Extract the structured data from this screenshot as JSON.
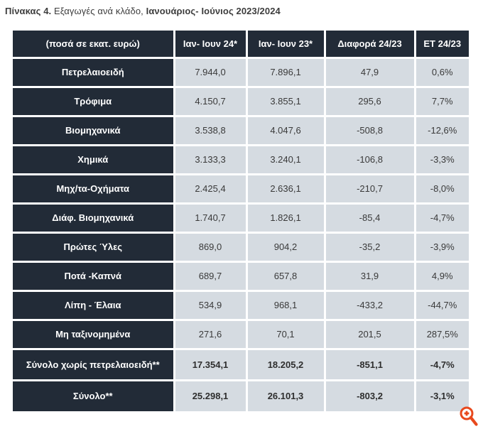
{
  "title": {
    "part_bold_1": "Πίνακας 4.",
    "part_regular": " Εξαγωγές ανά κλάδο, ",
    "part_bold_2": "Ιανουάριος- Ιούνιος 2023/2024"
  },
  "chart_data": {
    "type": "table",
    "title": "Πίνακας 4. Εξαγωγές ανά κλάδο, Ιανουάριος- Ιούνιος 2023/2024",
    "columns": [
      "(ποσά σε εκατ. ευρώ)",
      "Ιαν- Ιουν 24*",
      "Ιαν- Ιουν 23*",
      "Διαφορά 24/23",
      "ΕΤ 24/23"
    ],
    "rows": [
      {
        "label": "Πετρελαιοειδή",
        "values": [
          "7.944,0",
          "7.896,1",
          "47,9",
          "0,6%"
        ],
        "emphasis": false
      },
      {
        "label": "Τρόφιμα",
        "values": [
          "4.150,7",
          "3.855,1",
          "295,6",
          "7,7%"
        ],
        "emphasis": false
      },
      {
        "label": "Βιομηχανικά",
        "values": [
          "3.538,8",
          "4.047,6",
          "-508,8",
          "-12,6%"
        ],
        "emphasis": false
      },
      {
        "label": "Χημικά",
        "values": [
          "3.133,3",
          "3.240,1",
          "-106,8",
          "-3,3%"
        ],
        "emphasis": false
      },
      {
        "label": "Μηχ/τα-Οχήματα",
        "values": [
          "2.425,4",
          "2.636,1",
          "-210,7",
          "-8,0%"
        ],
        "emphasis": false
      },
      {
        "label": "Διάφ. Βιομηχανικά",
        "values": [
          "1.740,7",
          "1.826,1",
          "-85,4",
          "-4,7%"
        ],
        "emphasis": false
      },
      {
        "label": "Πρώτες Ύλες",
        "values": [
          "869,0",
          "904,2",
          "-35,2",
          "-3,9%"
        ],
        "emphasis": false
      },
      {
        "label": "Ποτά -Καπνά",
        "values": [
          "689,7",
          "657,8",
          "31,9",
          "4,9%"
        ],
        "emphasis": false
      },
      {
        "label": "Λίπη - Έλαια",
        "values": [
          "534,9",
          "968,1",
          "-433,2",
          "-44,7%"
        ],
        "emphasis": false
      },
      {
        "label": "Μη ταξινομημένα",
        "values": [
          "271,6",
          "70,1",
          "201,5",
          "287,5%"
        ],
        "emphasis": false
      },
      {
        "label": "Σύνολο χωρίς πετρελαιοειδή**",
        "values": [
          "17.354,1",
          "18.205,2",
          "-851,1",
          "-4,7%"
        ],
        "emphasis": true
      },
      {
        "label": "Σύνολο**",
        "values": [
          "25.298,1",
          "26.101,3",
          "-803,2",
          "-3,1%"
        ],
        "emphasis": true
      }
    ]
  },
  "icons": {
    "zoom_in": "magnifier-plus-icon"
  },
  "colors": {
    "header_bg": "#222b37",
    "cell_bg": "#d5dbe1",
    "value_text": "#3a3a3a",
    "title_text": "#3d3d3d",
    "zoom_icon": "#e8491d"
  }
}
